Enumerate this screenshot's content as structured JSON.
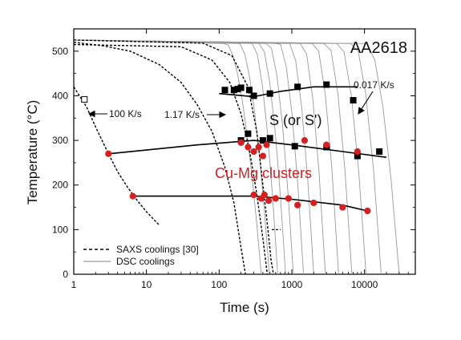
{
  "chart_data": {
    "type": "line",
    "title": "AA2618",
    "xlabel": "Time (s)",
    "ylabel": "Temperature (°C)",
    "xscale": "log",
    "xlim": [
      1,
      50000
    ],
    "ylim": [
      0,
      550
    ],
    "x_ticks": [
      1,
      10,
      100,
      1000,
      10000
    ],
    "x_tick_labels": [
      "1",
      "10",
      "100",
      "1000",
      "10000"
    ],
    "y_ticks": [
      0,
      100,
      200,
      300,
      400,
      500
    ],
    "y_tick_labels": [
      "0",
      "100",
      "200",
      "300",
      "400",
      "500"
    ],
    "grid": false,
    "legend_position": "bottom-left",
    "legend": [
      {
        "label": "SAXS coolings [30]",
        "style": "dashed",
        "color": "#000000"
      },
      {
        "label": "DSC coolings",
        "style": "solid",
        "color": "#9a9a9a"
      }
    ],
    "annotations": [
      {
        "text": "0.017 K/s",
        "x": 10000,
        "y": 420
      },
      {
        "text": "1.17 K/s",
        "x": 130,
        "y": 360
      },
      {
        "text": "100 K/s",
        "x": 1.5,
        "y": 360
      },
      {
        "text": "S (or S')",
        "x": 900,
        "y": 350
      },
      {
        "text": "Cu-Mg clusters",
        "x": 900,
        "y": 225,
        "color": "#d42020"
      }
    ],
    "dsc_curves": [
      {
        "start": 125,
        "end": 380
      },
      {
        "start": 190,
        "end": 490
      },
      {
        "start": 290,
        "end": 640
      },
      {
        "start": 370,
        "end": 820
      },
      {
        "start": 480,
        "end": 1050
      },
      {
        "start": 680,
        "end": 1450
      },
      {
        "start": 950,
        "end": 2000
      },
      {
        "start": 1400,
        "end": 2900
      },
      {
        "start": 2100,
        "end": 4400
      },
      {
        "start": 3100,
        "end": 6700
      },
      {
        "start": 4600,
        "end": 10500
      },
      {
        "start": 7200,
        "end": 17000
      },
      {
        "start": 11000,
        "end": 30000
      }
    ],
    "saxs_curves": [
      {
        "points": [
          [
            1,
            520
          ],
          [
            2.5,
            512
          ],
          [
            6,
            500
          ],
          [
            15,
            470
          ],
          [
            30,
            430
          ],
          [
            50,
            380
          ],
          [
            80,
            320
          ],
          [
            120,
            240
          ],
          [
            160,
            160
          ],
          [
            200,
            60
          ],
          [
            230,
            0
          ]
        ]
      },
      {
        "points": [
          [
            1,
            515
          ],
          [
            30,
            510
          ],
          [
            80,
            480
          ],
          [
            140,
            430
          ],
          [
            200,
            360
          ],
          [
            260,
            280
          ],
          [
            330,
            180
          ],
          [
            400,
            80
          ],
          [
            460,
            0
          ]
        ]
      },
      {
        "points": [
          [
            1,
            525
          ],
          [
            60,
            518
          ],
          [
            150,
            490
          ],
          [
            250,
            420
          ],
          [
            330,
            320
          ],
          [
            400,
            200
          ],
          [
            470,
            100
          ],
          [
            520,
            30
          ],
          [
            560,
            0
          ]
        ]
      }
    ],
    "saxs_fast_curve": [
      [
        1,
        420
      ],
      [
        1.5,
        375
      ],
      [
        2,
        330
      ],
      [
        3,
        270
      ],
      [
        4,
        230
      ],
      [
        5.5,
        195
      ],
      [
        7.5,
        165
      ],
      [
        10,
        140
      ],
      [
        15,
        110
      ]
    ],
    "saxs_tail": [
      [
        530,
        100
      ],
      [
        700,
        100
      ]
    ],
    "series": [
      {
        "name": "S (or S')",
        "marker": "square",
        "color": "#000000",
        "points": [
          [
            1.4,
            392
          ],
          [
            120,
            413
          ],
          [
            160,
            413
          ],
          [
            180,
            415
          ],
          [
            200,
            418
          ],
          [
            260,
            413
          ],
          [
            300,
            400
          ],
          [
            500,
            405
          ],
          [
            1200,
            420
          ],
          [
            3000,
            425
          ],
          [
            7000,
            390
          ],
          [
            200,
            300
          ],
          [
            250,
            315
          ],
          [
            400,
            300
          ],
          [
            500,
            305
          ],
          [
            1100,
            287
          ],
          [
            3000,
            285
          ],
          [
            8000,
            265
          ],
          [
            16000,
            275
          ]
        ]
      },
      {
        "name": "Cu-Mg clusters",
        "marker": "circle",
        "color": "#d42020",
        "points": [
          [
            3,
            270
          ],
          [
            6.5,
            175
          ],
          [
            200,
            295
          ],
          [
            250,
            285
          ],
          [
            300,
            275
          ],
          [
            350,
            285
          ],
          [
            400,
            265
          ],
          [
            450,
            290
          ],
          [
            300,
            178
          ],
          [
            380,
            170
          ],
          [
            420,
            178
          ],
          [
            480,
            165
          ],
          [
            600,
            170
          ],
          [
            900,
            170
          ],
          [
            1200,
            155
          ],
          [
            1500,
            300
          ],
          [
            2000,
            160
          ],
          [
            3000,
            290
          ],
          [
            5000,
            150
          ],
          [
            8000,
            275
          ],
          [
            11000,
            142
          ]
        ]
      }
    ],
    "fit_lines": [
      {
        "series": "S (or S')",
        "points": [
          [
            100,
            405
          ],
          [
            300,
            398
          ],
          [
            700,
            410
          ],
          [
            2000,
            420
          ],
          [
            8000,
            420
          ]
        ]
      },
      {
        "series": "Cu-Mg clusters",
        "points": [
          [
            3,
            270
          ],
          [
            50,
            290
          ],
          [
            300,
            300
          ],
          [
            1000,
            290
          ],
          [
            5000,
            275
          ],
          [
            20000,
            262
          ]
        ]
      },
      {
        "series": "Cu-Mg clusters",
        "points": [
          [
            6.5,
            175
          ],
          [
            300,
            175
          ],
          [
            1000,
            168
          ],
          [
            5000,
            155
          ],
          [
            11000,
            142
          ]
        ]
      }
    ]
  }
}
